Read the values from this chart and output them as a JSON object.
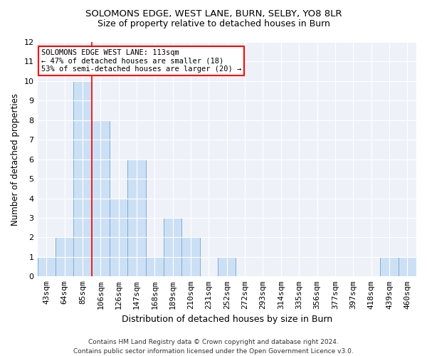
{
  "title1": "SOLOMONS EDGE, WEST LANE, BURN, SELBY, YO8 8LR",
  "title2": "Size of property relative to detached houses in Burn",
  "xlabel": "Distribution of detached houses by size in Burn",
  "ylabel": "Number of detached properties",
  "footnote": "Contains HM Land Registry data © Crown copyright and database right 2024.\nContains public sector information licensed under the Open Government Licence v3.0.",
  "categories": [
    "43sqm",
    "64sqm",
    "85sqm",
    "106sqm",
    "126sqm",
    "147sqm",
    "168sqm",
    "189sqm",
    "210sqm",
    "231sqm",
    "252sqm",
    "272sqm",
    "293sqm",
    "314sqm",
    "335sqm",
    "356sqm",
    "377sqm",
    "397sqm",
    "418sqm",
    "439sqm",
    "460sqm"
  ],
  "values": [
    1,
    2,
    10,
    8,
    4,
    6,
    1,
    3,
    2,
    0,
    1,
    0,
    0,
    0,
    0,
    0,
    0,
    0,
    0,
    1,
    1
  ],
  "bar_color": "#cce0f5",
  "bar_edge_color": "#7aadd4",
  "red_line_x": 2.5,
  "annotation_text": "SOLOMONS EDGE WEST LANE: 113sqm\n← 47% of detached houses are smaller (18)\n53% of semi-detached houses are larger (20) →",
  "annotation_box_color": "white",
  "annotation_box_edgecolor": "red",
  "ylim": [
    0,
    12
  ],
  "yticks": [
    0,
    1,
    2,
    3,
    4,
    5,
    6,
    7,
    8,
    9,
    10,
    11,
    12
  ],
  "background_color": "#eef2f8",
  "title1_fontsize": 9.5,
  "title2_fontsize": 9,
  "xlabel_fontsize": 9,
  "ylabel_fontsize": 8.5,
  "tick_fontsize": 8,
  "annot_fontsize": 7.5
}
